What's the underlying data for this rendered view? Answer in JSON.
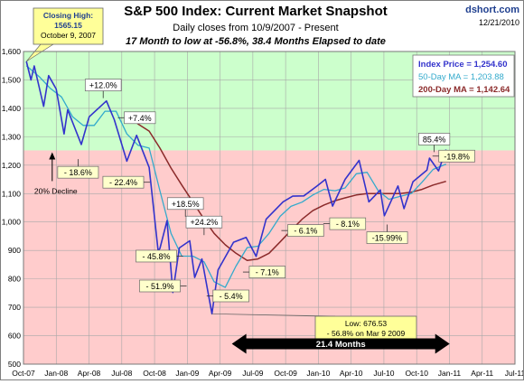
{
  "chart_data": {
    "type": "line",
    "title": "S&P 500 Index: Current Market Snapshot",
    "subtitle": "Daily closes from 10/9/2007 - Present",
    "subtitle2": "17 Month to low at -56.8%,  38.4 Months Elapsed to date",
    "source": "dshort.com",
    "date": "12/21/2010",
    "x_tick_labels": [
      "Oct-07",
      "Jan-08",
      "Apr-08",
      "Jul-08",
      "Oct-08",
      "Jan-09",
      "Apr-09",
      "Jul-09",
      "Oct-09",
      "Jan-10",
      "Apr-10",
      "Jul-10",
      "Oct-10",
      "Jan-11",
      "Apr-11",
      "Jul-11"
    ],
    "xlim": [
      "2007-10-01",
      "2011-07-01"
    ],
    "y_tick_labels": [
      "500",
      "600",
      "700",
      "800",
      "900",
      "1,000",
      "1,100",
      "1,200",
      "1,300",
      "1,400",
      "1,500",
      "1,600"
    ],
    "ylim": [
      500,
      1600
    ],
    "grid": true,
    "bands": [
      {
        "from": 1252,
        "to": 1600,
        "color": "#ccffcc"
      },
      {
        "from": 500,
        "to": 1252,
        "color": "#ffcccc"
      }
    ],
    "legend": {
      "position": "top-right",
      "entries": [
        {
          "label": "Index Price = 1,254.60",
          "color": "#3333cc"
        },
        {
          "label": "50-Day MA = 1,203.88",
          "color": "#33aacc"
        },
        {
          "label": "200-Day MA = 1,142.64",
          "color": "#8b2a2a"
        }
      ]
    },
    "series": [
      {
        "name": "Index Price",
        "color": "#3333cc",
        "points": [
          [
            "2007-10-09",
            1565
          ],
          [
            "2007-10-22",
            1500
          ],
          [
            "2007-10-31",
            1549
          ],
          [
            "2007-11-26",
            1407
          ],
          [
            "2007-12-10",
            1515
          ],
          [
            "2007-12-31",
            1468
          ],
          [
            "2008-01-22",
            1310
          ],
          [
            "2008-02-01",
            1395
          ],
          [
            "2008-03-10",
            1273
          ],
          [
            "2008-04-01",
            1370
          ],
          [
            "2008-05-19",
            1426
          ],
          [
            "2008-06-10",
            1360
          ],
          [
            "2008-07-15",
            1214
          ],
          [
            "2008-08-11",
            1305
          ],
          [
            "2008-09-15",
            1192
          ],
          [
            "2008-10-10",
            899
          ],
          [
            "2008-10-15",
            907
          ],
          [
            "2008-11-04",
            1005
          ],
          [
            "2008-11-20",
            752
          ],
          [
            "2008-12-08",
            909
          ],
          [
            "2009-01-06",
            934
          ],
          [
            "2009-01-20",
            805
          ],
          [
            "2009-02-09",
            870
          ],
          [
            "2009-03-09",
            677
          ],
          [
            "2009-03-26",
            832
          ],
          [
            "2009-05-08",
            929
          ],
          [
            "2009-06-12",
            946
          ],
          [
            "2009-07-10",
            879
          ],
          [
            "2009-08-07",
            1010
          ],
          [
            "2009-09-23",
            1071
          ],
          [
            "2009-10-20",
            1091
          ],
          [
            "2009-11-20",
            1092
          ],
          [
            "2009-12-28",
            1128
          ],
          [
            "2010-01-19",
            1150
          ],
          [
            "2010-02-08",
            1056
          ],
          [
            "2010-03-15",
            1150
          ],
          [
            "2010-04-23",
            1217
          ],
          [
            "2010-05-20",
            1071
          ],
          [
            "2010-06-21",
            1113
          ],
          [
            "2010-07-02",
            1022
          ],
          [
            "2010-08-09",
            1127
          ],
          [
            "2010-08-26",
            1047
          ],
          [
            "2010-09-20",
            1142
          ],
          [
            "2010-10-29",
            1183
          ],
          [
            "2010-11-05",
            1225
          ],
          [
            "2010-11-30",
            1180
          ],
          [
            "2010-12-21",
            1255
          ]
        ]
      },
      {
        "name": "50-Day MA",
        "color": "#33aacc",
        "points": [
          [
            "2007-10-09",
            1550
          ],
          [
            "2007-11-15",
            1510
          ],
          [
            "2007-12-15",
            1470
          ],
          [
            "2008-01-15",
            1440
          ],
          [
            "2008-02-15",
            1370
          ],
          [
            "2008-03-15",
            1340
          ],
          [
            "2008-04-15",
            1340
          ],
          [
            "2008-05-15",
            1390
          ],
          [
            "2008-06-15",
            1390
          ],
          [
            "2008-07-15",
            1310
          ],
          [
            "2008-08-15",
            1270
          ],
          [
            "2008-09-15",
            1260
          ],
          [
            "2008-10-15",
            1110
          ],
          [
            "2008-11-15",
            960
          ],
          [
            "2008-12-15",
            880
          ],
          [
            "2009-01-15",
            880
          ],
          [
            "2009-02-15",
            860
          ],
          [
            "2009-03-15",
            790
          ],
          [
            "2009-04-15",
            770
          ],
          [
            "2009-05-15",
            845
          ],
          [
            "2009-06-15",
            910
          ],
          [
            "2009-07-15",
            915
          ],
          [
            "2009-08-15",
            960
          ],
          [
            "2009-09-15",
            1020
          ],
          [
            "2009-10-15",
            1055
          ],
          [
            "2009-11-15",
            1070
          ],
          [
            "2009-12-15",
            1095
          ],
          [
            "2010-01-15",
            1115
          ],
          [
            "2010-02-15",
            1110
          ],
          [
            "2010-03-15",
            1120
          ],
          [
            "2010-04-15",
            1170
          ],
          [
            "2010-05-15",
            1175
          ],
          [
            "2010-06-15",
            1110
          ],
          [
            "2010-07-15",
            1080
          ],
          [
            "2010-08-15",
            1090
          ],
          [
            "2010-09-15",
            1100
          ],
          [
            "2010-10-15",
            1140
          ],
          [
            "2010-11-15",
            1185
          ],
          [
            "2010-12-21",
            1204
          ]
        ]
      },
      {
        "name": "200-Day MA",
        "color": "#8b2a2a",
        "points": [
          [
            "2008-07-20",
            1370
          ],
          [
            "2008-08-15",
            1345
          ],
          [
            "2008-09-15",
            1320
          ],
          [
            "2008-10-15",
            1260
          ],
          [
            "2008-11-15",
            1190
          ],
          [
            "2008-12-15",
            1130
          ],
          [
            "2009-01-15",
            1070
          ],
          [
            "2009-02-15",
            1010
          ],
          [
            "2009-03-15",
            960
          ],
          [
            "2009-04-15",
            920
          ],
          [
            "2009-05-15",
            890
          ],
          [
            "2009-06-15",
            865
          ],
          [
            "2009-07-15",
            870
          ],
          [
            "2009-08-15",
            890
          ],
          [
            "2009-09-15",
            930
          ],
          [
            "2009-10-15",
            970
          ],
          [
            "2009-11-15",
            1010
          ],
          [
            "2009-12-15",
            1040
          ],
          [
            "2010-01-15",
            1060
          ],
          [
            "2010-02-15",
            1075
          ],
          [
            "2010-03-15",
            1085
          ],
          [
            "2010-04-15",
            1095
          ],
          [
            "2010-05-15",
            1100
          ],
          [
            "2010-06-15",
            1100
          ],
          [
            "2010-07-15",
            1100
          ],
          [
            "2010-08-15",
            1100
          ],
          [
            "2010-09-15",
            1105
          ],
          [
            "2010-10-15",
            1115
          ],
          [
            "2010-11-15",
            1130
          ],
          [
            "2010-12-21",
            1143
          ]
        ]
      }
    ],
    "annotations": [
      {
        "text": "+12.0%",
        "x": "2008-05-10",
        "y": 1482,
        "style": "box",
        "arrow": "down"
      },
      {
        "text": "+7.4%",
        "x": "2008-08-20",
        "y": 1367,
        "style": "box",
        "arrow": "left"
      },
      {
        "text": "- 18.6%",
        "x": "2008-03-01",
        "y": 1175,
        "style": "box-yellow",
        "arrow": "up"
      },
      {
        "text": "- 22.4%",
        "x": "2008-07-05",
        "y": 1140,
        "style": "box-yellow",
        "arrow": "right"
      },
      {
        "text": "+18.5%",
        "x": "2008-12-25",
        "y": 1065,
        "style": "box",
        "arrow": "down"
      },
      {
        "text": "+24.2%",
        "x": "2009-02-15",
        "y": 1000,
        "style": "box",
        "arrow": "down"
      },
      {
        "text": "- 45.8%",
        "x": "2008-10-05",
        "y": 880,
        "style": "box-yellow",
        "arrow": "right"
      },
      {
        "text": "- 51.9%",
        "x": "2008-10-15",
        "y": 775,
        "style": "box-yellow",
        "arrow": "right"
      },
      {
        "text": "- 5.4%",
        "x": "2009-05-01",
        "y": 740,
        "style": "box-yellow",
        "arrow": "left"
      },
      {
        "text": "- 7.1%",
        "x": "2009-08-10",
        "y": 824,
        "style": "box-yellow",
        "arrow": "left"
      },
      {
        "text": "- 6.1%",
        "x": "2009-11-25",
        "y": 970,
        "style": "box-yellow",
        "arrow": "left"
      },
      {
        "text": "- 8.1%",
        "x": "2010-03-22",
        "y": 994,
        "style": "box-yellow",
        "arrow": "left"
      },
      {
        "text": "-15.99%",
        "x": "2010-07-10",
        "y": 945,
        "style": "box-yellow",
        "arrow": "up"
      },
      {
        "text": "85.4%",
        "x": "2010-11-18",
        "y": 1292,
        "style": "box",
        "arrow": "down"
      },
      {
        "text": "-19.8%",
        "x": "2011-01-20",
        "y": 1232,
        "style": "box-yellow",
        "arrow": "left"
      }
    ],
    "callouts": [
      {
        "lines": [
          "Closing High:",
          "1565.15",
          "October 9, 2007"
        ],
        "x": "2007-10-09",
        "y": 1565
      },
      {
        "lines": [
          "Low: 676.53",
          "- 56.8% on Mar 9 2009"
        ],
        "x": "2009-03-09",
        "y": 677
      }
    ],
    "decline_marker": {
      "text": "20% Decline",
      "x": "2007-12-20",
      "y": 1252
    },
    "span_arrow": {
      "text": "21.4  Months",
      "from": "2009-03-09",
      "to": "2010-12-21",
      "y": 565
    }
  }
}
